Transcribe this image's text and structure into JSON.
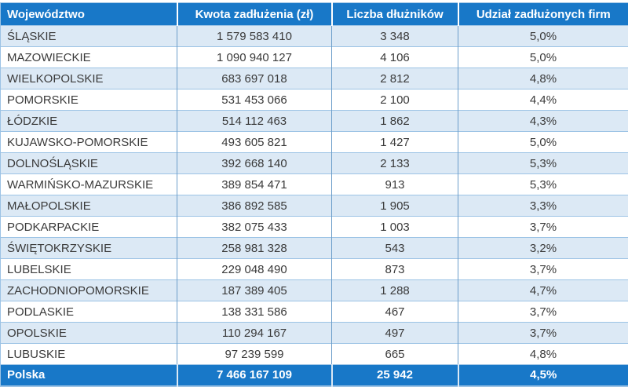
{
  "chart_data": {
    "type": "table",
    "columns": [
      "Województwo",
      "Kwota zadłużenia (zł)",
      "Liczba dłużników",
      "Udział zadłużonych firm"
    ],
    "rows": [
      [
        "ŚLĄSKIE",
        "1 579 583 410",
        "3 348",
        "5,0%"
      ],
      [
        "MAZOWIECKIE",
        "1 090 940 127",
        "4 106",
        "5,0%"
      ],
      [
        "WIELKOPOLSKIE",
        "683 697 018",
        "2 812",
        "4,8%"
      ],
      [
        "POMORSKIE",
        "531 453 066",
        "2 100",
        "4,4%"
      ],
      [
        "ŁÓDZKIE",
        "514 112 463",
        "1 862",
        "4,3%"
      ],
      [
        "KUJAWSKO-POMORSKIE",
        "493 605 821",
        "1 427",
        "5,0%"
      ],
      [
        "DOLNOŚLĄSKIE",
        "392 668 140",
        "2 133",
        "5,3%"
      ],
      [
        "WARMIŃSKO-MAZURSKIE",
        "389 854 471",
        "913",
        "5,3%"
      ],
      [
        "MAŁOPOLSKIE",
        "386 892 585",
        "1 905",
        "3,3%"
      ],
      [
        "PODKARPACKIE",
        "382 075 433",
        "1 003",
        "3,7%"
      ],
      [
        "ŚWIĘTOKRZYSKIE",
        "258 981 328",
        "543",
        "3,2%"
      ],
      [
        "LUBELSKIE",
        "229 048 490",
        "873",
        "3,7%"
      ],
      [
        "ZACHODNIOPOMORSKIE",
        "187 389 405",
        "1 288",
        "4,7%"
      ],
      [
        "PODLASKIE",
        "138 331 586",
        "467",
        "3,7%"
      ],
      [
        "OPOLSKIE",
        "110 294 167",
        "497",
        "3,7%"
      ],
      [
        "LUBUSKIE",
        "97 239 599",
        "665",
        "4,8%"
      ]
    ],
    "total_row": [
      "Polska",
      "7 466 167 109",
      "25 942",
      "4,5%"
    ]
  },
  "colors": {
    "header_bg": "#1878c8",
    "band_bg": "#dce9f5",
    "border_light": "#9cc3e5",
    "border_dark": "#6d9eca",
    "text_dark": "#3a3a3a",
    "header_text": "#ffffff",
    "page_bg": "#ffffff"
  }
}
